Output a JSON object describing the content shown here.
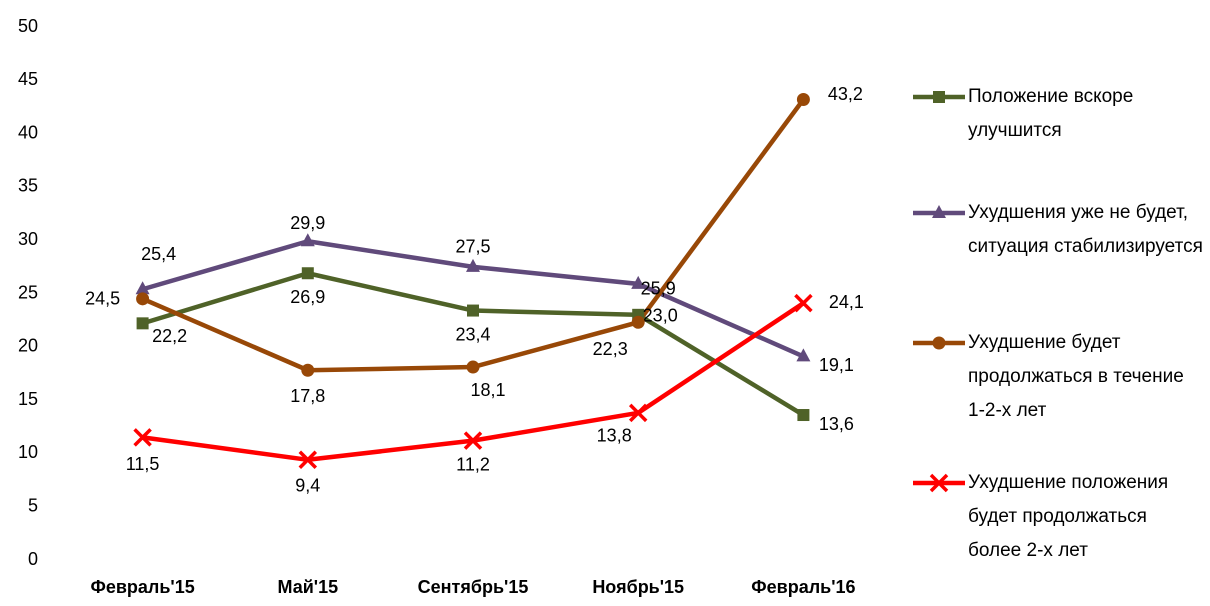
{
  "chart_data": {
    "type": "line",
    "categories": [
      "Февраль'15",
      "Май'15",
      "Сентябрь'15",
      "Ноябрь'15",
      "Февраль'16"
    ],
    "ylim": [
      0,
      50
    ],
    "yticks": [
      0,
      5,
      10,
      15,
      20,
      25,
      30,
      35,
      40,
      45,
      50
    ],
    "legend": "right",
    "series": [
      {
        "name": "Положение вскоре улучшится",
        "color": "#4f6228",
        "marker": "square",
        "values": [
          22.2,
          26.9,
          23.4,
          23.0,
          13.6
        ],
        "value_labels": [
          "22,2",
          "26,9",
          "23,4",
          "23,0",
          "13,6"
        ]
      },
      {
        "name": "Ухудшения уже не будет, ситуация стабилизируется",
        "color": "#604a7b",
        "marker": "triangle",
        "values": [
          25.4,
          29.9,
          27.5,
          25.9,
          19.1
        ],
        "value_labels": [
          "25,4",
          "29,9",
          "27,5",
          "25,9",
          "19,1"
        ]
      },
      {
        "name": "Ухудшение будет продолжаться в течение 1-2-х лет",
        "color": "#984807",
        "marker": "circle",
        "values": [
          24.5,
          17.8,
          18.1,
          22.3,
          43.2
        ],
        "value_labels": [
          "24,5",
          "17,8",
          "18,1",
          "22,3",
          "43,2"
        ]
      },
      {
        "name": "Ухудшение положения будет продолжаться более 2-х лет",
        "color": "#ff0000",
        "marker": "x",
        "values": [
          11.5,
          9.4,
          11.2,
          13.8,
          24.1
        ],
        "value_labels": [
          "11,5",
          "9,4",
          "11,2",
          "13,8",
          "24,1"
        ]
      }
    ]
  }
}
